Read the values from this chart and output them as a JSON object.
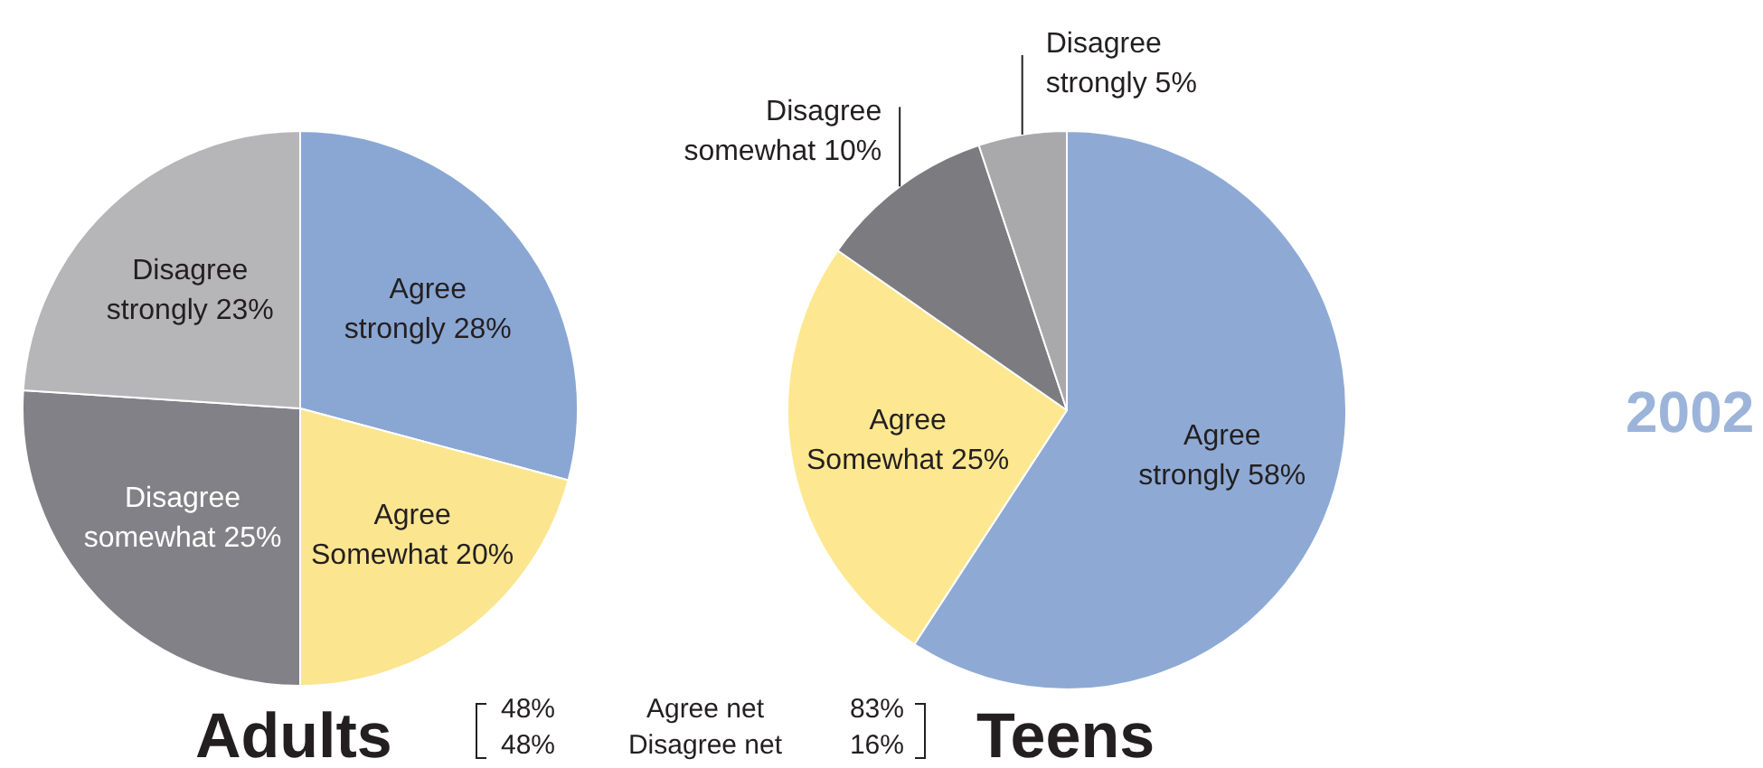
{
  "chart_data": [
    {
      "type": "pie",
      "title": "Adults",
      "categories": [
        "Agree strongly",
        "Agree Somewhat",
        "Disagree somewhat",
        "Disagree strongly"
      ],
      "values": [
        28,
        20,
        25,
        23
      ],
      "colors": [
        "#8aa7d3",
        "#fbe58f",
        "#828187",
        "#b6b6b9"
      ],
      "value_labels": [
        "28%",
        "20%",
        "25%",
        "23%"
      ]
    },
    {
      "type": "other",
      "annotations": [
        "48%",
        "Agree net",
        "83%",
        "48%",
        "Disagree net",
        "16%"
      ]
    },
    {
      "type": "pie",
      "title": "Teens",
      "categories": [
        "Agree strongly",
        "Agree Somewhat",
        "Disagree somewhat",
        "Disagree strongly"
      ],
      "values": [
        58,
        25,
        10,
        5
      ],
      "colors": [
        "#8eaad4",
        "#fde891",
        "#7c7b80",
        "#a9a9ac"
      ],
      "value_labels": [
        "58%",
        "25%",
        "10%",
        "5%"
      ]
    },
    {
      "type": "other",
      "title": "2002"
    }
  ]
}
